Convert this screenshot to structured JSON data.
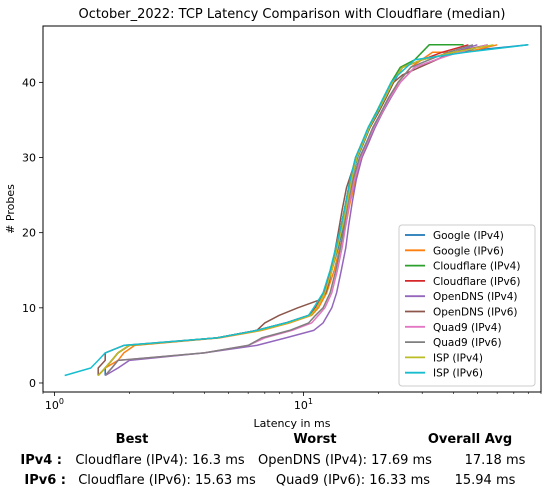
{
  "chart_data": {
    "type": "line",
    "title": "October_2022: TCP Latency Comparison with Cloudflare (median)",
    "xlabel": "Latency in ms",
    "ylabel": "# Probes",
    "xscale": "log",
    "xlim": [
      0.9,
      90
    ],
    "ylim": [
      -1.2,
      47.5
    ],
    "x_ticks": [
      {
        "value": 1,
        "label": "10^0"
      },
      {
        "value": 10,
        "label": "10^1"
      }
    ],
    "y_ticks": [
      0,
      10,
      20,
      30,
      40
    ],
    "grid": false,
    "legend_position": "lower-right",
    "series": [
      {
        "name": "Google (IPv4)",
        "color": "#1f77b4",
        "points": [
          [
            1.6,
            1
          ],
          [
            1.6,
            2
          ],
          [
            1.7,
            3
          ],
          [
            1.8,
            4
          ],
          [
            2,
            5
          ],
          [
            4.5,
            6
          ],
          [
            6.5,
            7
          ],
          [
            8.5,
            8
          ],
          [
            10.5,
            9
          ],
          [
            11.2,
            10
          ],
          [
            12.2,
            12
          ],
          [
            13,
            15
          ],
          [
            13.8,
            18
          ],
          [
            14.5,
            21
          ],
          [
            15,
            24
          ],
          [
            15.6,
            27
          ],
          [
            16.5,
            30
          ],
          [
            17.5,
            32
          ],
          [
            18.5,
            34
          ],
          [
            20,
            36
          ],
          [
            21.5,
            38
          ],
          [
            23,
            40
          ],
          [
            25,
            42
          ],
          [
            30,
            43
          ],
          [
            40,
            44
          ],
          [
            80,
            45
          ]
        ]
      },
      {
        "name": "Google (IPv6)",
        "color": "#ff7f0e",
        "points": [
          [
            1.5,
            1
          ],
          [
            1.6,
            2
          ],
          [
            1.8,
            3
          ],
          [
            1.9,
            4
          ],
          [
            2.1,
            5
          ],
          [
            4.6,
            6
          ],
          [
            6.8,
            7
          ],
          [
            8.8,
            8
          ],
          [
            10.8,
            9
          ],
          [
            11.5,
            10
          ],
          [
            12.4,
            12
          ],
          [
            13.3,
            15
          ],
          [
            14,
            18
          ],
          [
            14.8,
            21
          ],
          [
            15.4,
            24
          ],
          [
            16.2,
            27
          ],
          [
            17.2,
            30
          ],
          [
            18.3,
            32
          ],
          [
            19.3,
            34
          ],
          [
            20.8,
            36
          ],
          [
            22.3,
            38
          ],
          [
            24,
            40
          ],
          [
            27,
            42
          ],
          [
            33,
            44
          ],
          [
            45,
            44
          ],
          [
            60,
            45
          ]
        ]
      },
      {
        "name": "Cloudflare (IPv4)",
        "color": "#2ca02c",
        "points": [
          [
            1.5,
            1
          ],
          [
            1.6,
            2
          ],
          [
            1.7,
            3
          ],
          [
            1.8,
            4
          ],
          [
            2,
            5
          ],
          [
            4.5,
            6
          ],
          [
            6.6,
            7
          ],
          [
            8.6,
            8
          ],
          [
            10.6,
            9
          ],
          [
            11.3,
            10
          ],
          [
            12.2,
            12
          ],
          [
            13,
            15
          ],
          [
            13.6,
            18
          ],
          [
            14.2,
            21
          ],
          [
            14.8,
            24
          ],
          [
            15.4,
            27
          ],
          [
            16.2,
            30
          ],
          [
            17.2,
            32
          ],
          [
            18.2,
            34
          ],
          [
            19.6,
            36
          ],
          [
            21,
            38
          ],
          [
            22.5,
            40
          ],
          [
            24.5,
            42
          ],
          [
            28,
            43
          ],
          [
            32,
            45
          ],
          [
            44,
            45
          ]
        ]
      },
      {
        "name": "Cloudflare (IPv6)",
        "color": "#d62728",
        "points": [
          [
            1.5,
            1
          ],
          [
            1.6,
            2
          ],
          [
            1.7,
            3
          ],
          [
            1.8,
            4
          ],
          [
            2,
            5
          ],
          [
            4.5,
            6
          ],
          [
            6.5,
            7
          ],
          [
            8.5,
            8
          ],
          [
            10.5,
            9
          ],
          [
            11.2,
            10
          ],
          [
            12.1,
            12
          ],
          [
            12.9,
            15
          ],
          [
            13.6,
            18
          ],
          [
            14.2,
            21
          ],
          [
            14.8,
            24
          ],
          [
            15.4,
            27
          ],
          [
            16.2,
            30
          ],
          [
            17.2,
            32
          ],
          [
            18.3,
            34
          ],
          [
            19.8,
            36
          ],
          [
            21.2,
            38
          ],
          [
            22.8,
            40
          ],
          [
            25,
            42
          ],
          [
            30,
            43
          ],
          [
            36,
            44
          ],
          [
            46,
            45
          ]
        ]
      },
      {
        "name": "OpenDNS (IPv4)",
        "color": "#9467bd",
        "points": [
          [
            1.6,
            1
          ],
          [
            1.8,
            2
          ],
          [
            2,
            3
          ],
          [
            4,
            4
          ],
          [
            6.5,
            5
          ],
          [
            8.5,
            6
          ],
          [
            11,
            7
          ],
          [
            12,
            8
          ],
          [
            12.5,
            9
          ],
          [
            13,
            10
          ],
          [
            13.6,
            12
          ],
          [
            14.2,
            15
          ],
          [
            14.8,
            18
          ],
          [
            15.2,
            21
          ],
          [
            15.7,
            24
          ],
          [
            16.3,
            27
          ],
          [
            17.2,
            30
          ],
          [
            18.3,
            32
          ],
          [
            19.4,
            34
          ],
          [
            20.8,
            36
          ],
          [
            22.5,
            38
          ],
          [
            24.5,
            40
          ],
          [
            28,
            42
          ],
          [
            34,
            43
          ],
          [
            40,
            44
          ],
          [
            50,
            45
          ]
        ]
      },
      {
        "name": "OpenDNS (IPv6)",
        "color": "#8c564b",
        "points": [
          [
            1.5,
            1
          ],
          [
            1.5,
            2
          ],
          [
            1.6,
            3
          ],
          [
            1.6,
            4
          ],
          [
            1.9,
            5
          ],
          [
            4.5,
            6
          ],
          [
            6.5,
            7
          ],
          [
            7,
            8
          ],
          [
            8,
            9
          ],
          [
            9.5,
            10
          ],
          [
            11.5,
            11
          ],
          [
            12.3,
            12
          ],
          [
            12.8,
            14
          ],
          [
            13.3,
            17
          ],
          [
            13.8,
            20
          ],
          [
            14.3,
            23
          ],
          [
            14.9,
            26
          ],
          [
            15.6,
            28
          ],
          [
            16.4,
            30
          ],
          [
            17.4,
            32
          ],
          [
            18.5,
            34
          ],
          [
            20,
            36
          ],
          [
            21.5,
            38
          ],
          [
            23,
            40
          ],
          [
            25,
            41
          ],
          [
            40,
            44
          ],
          [
            55,
            45
          ]
        ]
      },
      {
        "name": "Quad9 (IPv4)",
        "color": "#e377c2",
        "points": [
          [
            1.6,
            1
          ],
          [
            1.7,
            2
          ],
          [
            1.8,
            3
          ],
          [
            4,
            4
          ],
          [
            6,
            5
          ],
          [
            7,
            6
          ],
          [
            9,
            7
          ],
          [
            10.8,
            8
          ],
          [
            11.5,
            9
          ],
          [
            12.2,
            10
          ],
          [
            13,
            12
          ],
          [
            13.7,
            15
          ],
          [
            14.3,
            18
          ],
          [
            14.8,
            21
          ],
          [
            15.3,
            24
          ],
          [
            16,
            27
          ],
          [
            17,
            30
          ],
          [
            18,
            32
          ],
          [
            19.2,
            34
          ],
          [
            20.7,
            36
          ],
          [
            22.3,
            38
          ],
          [
            24.5,
            40
          ],
          [
            28,
            42
          ],
          [
            34,
            43
          ],
          [
            42,
            44
          ],
          [
            55,
            45
          ]
        ]
      },
      {
        "name": "Quad9 (IPv6)",
        "color": "#7f7f7f",
        "points": [
          [
            1.6,
            1
          ],
          [
            1.7,
            2
          ],
          [
            1.8,
            3
          ],
          [
            4,
            4
          ],
          [
            6,
            5
          ],
          [
            6.8,
            6
          ],
          [
            8.8,
            7
          ],
          [
            10.5,
            8
          ],
          [
            11.2,
            9
          ],
          [
            12,
            10
          ],
          [
            12.8,
            12
          ],
          [
            13.5,
            15
          ],
          [
            14.1,
            18
          ],
          [
            14.6,
            21
          ],
          [
            15.1,
            24
          ],
          [
            15.8,
            27
          ],
          [
            16.8,
            30
          ],
          [
            17.9,
            32
          ],
          [
            19,
            34
          ],
          [
            20.5,
            36
          ],
          [
            22,
            38
          ],
          [
            24,
            40
          ],
          [
            27,
            42
          ],
          [
            32,
            43
          ],
          [
            38,
            44
          ],
          [
            48,
            45
          ]
        ]
      },
      {
        "name": "ISP (IPv4)",
        "color": "#bcbd22",
        "points": [
          [
            1.5,
            1
          ],
          [
            1.6,
            2
          ],
          [
            1.7,
            3
          ],
          [
            1.8,
            4
          ],
          [
            2,
            5
          ],
          [
            4.5,
            6
          ],
          [
            6.7,
            7
          ],
          [
            8.7,
            8
          ],
          [
            10.7,
            9
          ],
          [
            11.3,
            10
          ],
          [
            12.2,
            12
          ],
          [
            13,
            15
          ],
          [
            13.7,
            18
          ],
          [
            14.4,
            21
          ],
          [
            15,
            24
          ],
          [
            15.6,
            27
          ],
          [
            16.4,
            30
          ],
          [
            17.4,
            32
          ],
          [
            18.4,
            34
          ],
          [
            19.8,
            36
          ],
          [
            21.3,
            38
          ],
          [
            22.8,
            40
          ],
          [
            25,
            42
          ],
          [
            30,
            43
          ],
          [
            40,
            44
          ],
          [
            58,
            45
          ]
        ]
      },
      {
        "name": "ISP (IPv6)",
        "color": "#17becf",
        "points": [
          [
            1.1,
            1
          ],
          [
            1.4,
            2
          ],
          [
            1.5,
            3
          ],
          [
            1.6,
            4
          ],
          [
            1.9,
            5
          ],
          [
            4.5,
            6
          ],
          [
            6.5,
            7
          ],
          [
            8.5,
            8
          ],
          [
            10.5,
            9
          ],
          [
            11,
            10
          ],
          [
            12,
            12
          ],
          [
            12.8,
            15
          ],
          [
            13.5,
            18
          ],
          [
            14.2,
            21
          ],
          [
            14.8,
            24
          ],
          [
            15.4,
            27
          ],
          [
            16.2,
            30
          ],
          [
            17.2,
            32
          ],
          [
            18.2,
            34
          ],
          [
            19.7,
            36
          ],
          [
            21,
            38
          ],
          [
            22.5,
            40
          ],
          [
            24,
            41
          ],
          [
            28,
            43
          ],
          [
            45,
            44
          ],
          [
            80,
            45
          ]
        ]
      }
    ]
  },
  "summary": {
    "headers": {
      "best": "Best",
      "worst": "Worst",
      "avg": "Overall Avg"
    },
    "rows": [
      {
        "label": "IPv4 :",
        "best": "Cloudflare (IPv4): 16.3 ms",
        "worst": "OpenDNS (IPv4): 17.69 ms",
        "avg": "17.18 ms"
      },
      {
        "label": "IPv6 :",
        "best": "Cloudflare (IPv6): 15.63 ms",
        "worst": "Quad9 (IPv6): 16.33 ms",
        "avg": "15.94 ms"
      }
    ]
  }
}
